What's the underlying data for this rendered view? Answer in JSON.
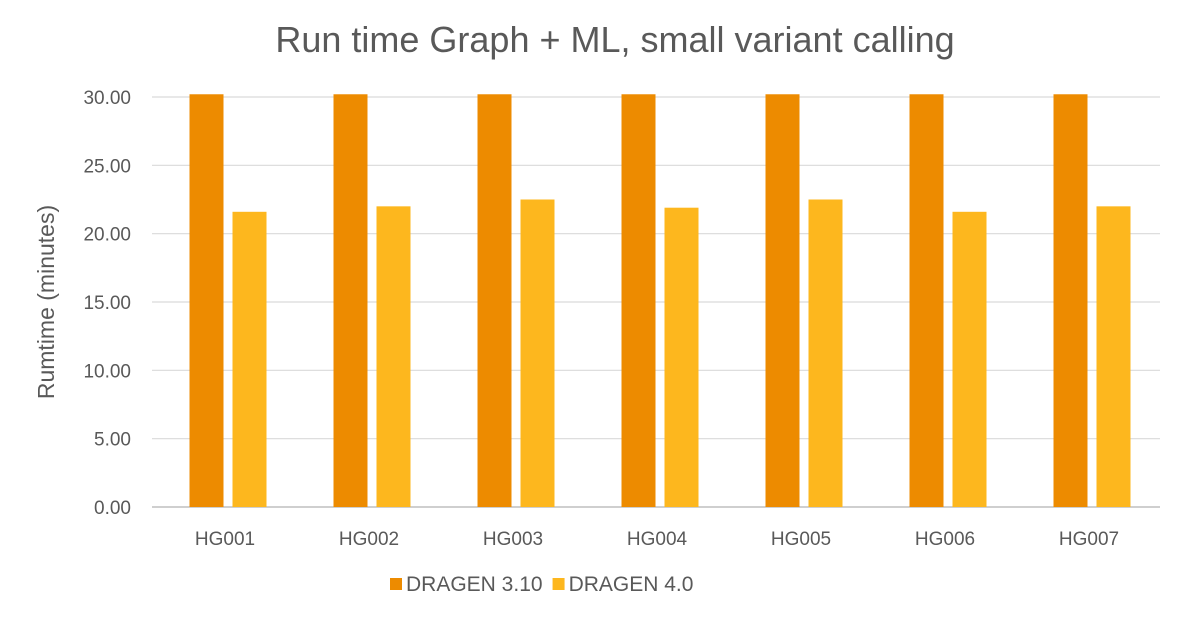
{
  "chart_data": {
    "type": "bar",
    "title": "Run time Graph + ML, small variant calling",
    "xlabel": "",
    "ylabel": "Rumtime (minutes)",
    "ylim": [
      0,
      30
    ],
    "yticks": [
      "0.00",
      "5.00",
      "10.00",
      "15.00",
      "20.00",
      "25.00",
      "30.00"
    ],
    "grid": true,
    "legend_position": "bottom",
    "categories": [
      "HG001",
      "HG002",
      "HG003",
      "HG004",
      "HG005",
      "HG006",
      "HG007"
    ],
    "series": [
      {
        "name": "DRAGEN 3.10",
        "color": "#ED8B00",
        "values": [
          30.2,
          30.2,
          30.2,
          30.2,
          30.2,
          30.2,
          30.2
        ]
      },
      {
        "name": "DRAGEN 4.0",
        "color": "#FDB71E",
        "values": [
          21.6,
          22.0,
          22.5,
          21.9,
          22.5,
          21.6,
          22.0
        ]
      }
    ]
  }
}
